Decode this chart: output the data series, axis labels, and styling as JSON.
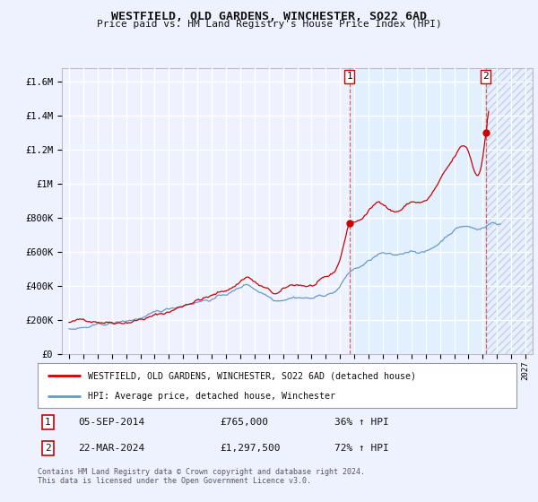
{
  "title": "WESTFIELD, OLD GARDENS, WINCHESTER, SO22 6AD",
  "subtitle": "Price paid vs. HM Land Registry's House Price Index (HPI)",
  "ylabel_ticks": [
    "£0",
    "£200K",
    "£400K",
    "£600K",
    "£800K",
    "£1M",
    "£1.2M",
    "£1.4M",
    "£1.6M"
  ],
  "ytick_values": [
    0,
    200000,
    400000,
    600000,
    800000,
    1000000,
    1200000,
    1400000,
    1600000
  ],
  "ylim": [
    0,
    1680000
  ],
  "xlim_start": 1994.5,
  "xlim_end": 2027.5,
  "bg_color": "#eef2ff",
  "plot_bg_color": "#eef2ff",
  "grid_color": "#ffffff",
  "red_color": "#cc0000",
  "blue_color": "#6699cc",
  "shade_color": "#ddeeff",
  "hatch_color": "#ccddee",
  "marker1_x": 2014.67,
  "marker1_y": 765000,
  "marker2_x": 2024.22,
  "marker2_y": 1297500,
  "vline1_x": 2014.67,
  "vline2_x": 2024.22,
  "legend_line1": "WESTFIELD, OLD GARDENS, WINCHESTER, SO22 6AD (detached house)",
  "legend_line2": "HPI: Average price, detached house, Winchester",
  "note1_num": "1",
  "note1_date": "05-SEP-2014",
  "note1_price": "£765,000",
  "note1_pct": "36% ↑ HPI",
  "note2_num": "2",
  "note2_date": "22-MAR-2024",
  "note2_price": "£1,297,500",
  "note2_pct": "72% ↑ HPI",
  "footer": "Contains HM Land Registry data © Crown copyright and database right 2024.\nThis data is licensed under the Open Government Licence v3.0.",
  "xticks": [
    1995,
    1996,
    1997,
    1998,
    1999,
    2000,
    2001,
    2002,
    2003,
    2004,
    2005,
    2006,
    2007,
    2008,
    2009,
    2010,
    2011,
    2012,
    2013,
    2014,
    2015,
    2016,
    2017,
    2018,
    2019,
    2020,
    2021,
    2022,
    2023,
    2024,
    2025,
    2026,
    2027
  ]
}
